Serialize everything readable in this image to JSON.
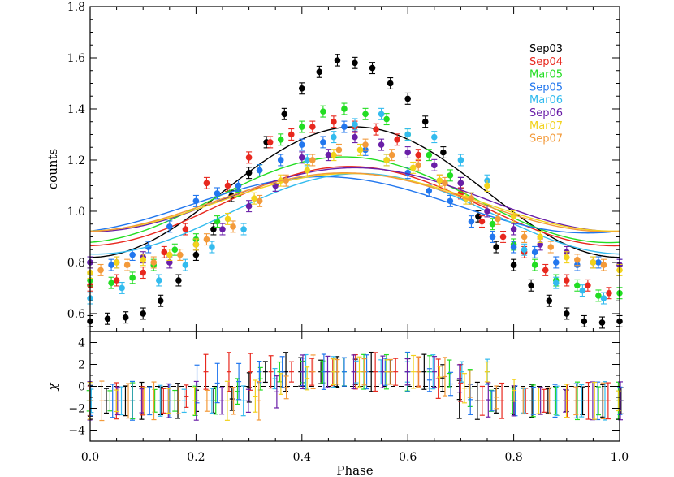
{
  "chart_data": [
    {
      "type": "scatter",
      "panel": "top",
      "ylabel": "counts",
      "xlabel": "",
      "xlim": [
        0.0,
        1.0
      ],
      "ylim": [
        0.53,
        1.8
      ],
      "yticks": [
        0.6,
        0.8,
        1.0,
        1.2,
        1.4,
        1.6,
        1.8
      ],
      "ytick_labels": [
        "0.6",
        "0.8",
        "1.0",
        "1.2",
        "1.4",
        "1.6",
        "1.8"
      ],
      "legend_position": "top-right",
      "series": [
        {
          "name": "Sep03",
          "color": "#000000",
          "model": {
            "mean": 1.075,
            "amp": 0.51,
            "peak": 0.5
          },
          "x": [
            0.0,
            0.033,
            0.067,
            0.1,
            0.133,
            0.167,
            0.2,
            0.233,
            0.267,
            0.3,
            0.333,
            0.367,
            0.4,
            0.433,
            0.467,
            0.5,
            0.533,
            0.567,
            0.6,
            0.633,
            0.667,
            0.7,
            0.733,
            0.767,
            0.8,
            0.833,
            0.867,
            0.9,
            0.933,
            0.967,
            1.0
          ],
          "y": [
            0.57,
            0.58,
            0.585,
            0.6,
            0.65,
            0.73,
            0.83,
            0.93,
            1.06,
            1.15,
            1.27,
            1.38,
            1.48,
            1.545,
            1.59,
            1.58,
            1.56,
            1.5,
            1.44,
            1.35,
            1.23,
            1.11,
            0.98,
            0.86,
            0.79,
            0.71,
            0.65,
            0.6,
            0.57,
            0.565,
            0.57
          ]
        },
        {
          "name": "Sep04",
          "color": "#e8281e",
          "model": {
            "mean": 1.02,
            "amp": 0.31,
            "peak": 0.49
          },
          "x": [
            0.0,
            0.05,
            0.1,
            0.14,
            0.18,
            0.22,
            0.26,
            0.3,
            0.34,
            0.38,
            0.42,
            0.46,
            0.5,
            0.54,
            0.58,
            0.62,
            0.66,
            0.7,
            0.74,
            0.78,
            0.82,
            0.86,
            0.9,
            0.94,
            0.98
          ],
          "y": [
            0.71,
            0.73,
            0.76,
            0.84,
            0.93,
            1.11,
            1.1,
            1.21,
            1.27,
            1.3,
            1.33,
            1.35,
            1.33,
            1.32,
            1.28,
            1.22,
            1.12,
            1.07,
            0.96,
            0.9,
            0.84,
            0.77,
            0.73,
            0.71,
            0.68
          ]
        },
        {
          "name": "Mar05",
          "color": "#22dd22",
          "model": {
            "mean": 1.045,
            "amp": 0.335,
            "peak": 0.48
          },
          "x": [
            0.0,
            0.04,
            0.08,
            0.12,
            0.16,
            0.2,
            0.24,
            0.28,
            0.32,
            0.36,
            0.4,
            0.44,
            0.48,
            0.52,
            0.56,
            0.6,
            0.64,
            0.68,
            0.72,
            0.76,
            0.8,
            0.84,
            0.88,
            0.92,
            0.96,
            1.0
          ],
          "y": [
            0.73,
            0.72,
            0.74,
            0.79,
            0.85,
            0.89,
            0.96,
            1.08,
            1.16,
            1.28,
            1.33,
            1.39,
            1.4,
            1.38,
            1.36,
            1.3,
            1.22,
            1.14,
            1.05,
            0.95,
            0.87,
            0.79,
            0.73,
            0.71,
            0.67,
            0.68
          ]
        },
        {
          "name": "Sep05",
          "color": "#2277ee",
          "model": {
            "mean": 1.025,
            "amp": 0.22,
            "peak": 0.44
          },
          "x": [
            0.0,
            0.04,
            0.08,
            0.11,
            0.15,
            0.2,
            0.24,
            0.28,
            0.32,
            0.36,
            0.4,
            0.44,
            0.48,
            0.52,
            0.56,
            0.6,
            0.64,
            0.68,
            0.72,
            0.76,
            0.8,
            0.84,
            0.88,
            0.92,
            0.96,
            1.0
          ],
          "y": [
            0.8,
            0.79,
            0.83,
            0.86,
            0.94,
            1.04,
            1.07,
            1.1,
            1.16,
            1.2,
            1.26,
            1.27,
            1.33,
            1.24,
            1.2,
            1.15,
            1.08,
            1.04,
            0.96,
            0.9,
            0.86,
            0.84,
            0.8,
            0.79,
            0.8,
            0.79
          ]
        },
        {
          "name": "Mar06",
          "color": "#33bbee",
          "model": {
            "mean": 0.99,
            "amp": 0.315,
            "peak": 0.51
          },
          "x": [
            0.0,
            0.06,
            0.13,
            0.18,
            0.23,
            0.29,
            0.35,
            0.41,
            0.46,
            0.5,
            0.55,
            0.6,
            0.65,
            0.7,
            0.75,
            0.82,
            0.88,
            0.93,
            0.97
          ],
          "y": [
            0.66,
            0.7,
            0.73,
            0.79,
            0.86,
            0.93,
            1.1,
            1.2,
            1.29,
            1.34,
            1.38,
            1.3,
            1.29,
            1.2,
            1.12,
            0.85,
            0.72,
            0.69,
            0.66
          ]
        },
        {
          "name": "Sep06",
          "color": "#6a1fa8",
          "model": {
            "mean": 1.045,
            "amp": 0.25,
            "peak": 0.5
          },
          "x": [
            0.0,
            0.05,
            0.1,
            0.15,
            0.2,
            0.25,
            0.3,
            0.35,
            0.4,
            0.45,
            0.5,
            0.55,
            0.6,
            0.65,
            0.7,
            0.75,
            0.8,
            0.85,
            0.9,
            0.95,
            1.0
          ],
          "y": [
            0.8,
            0.8,
            0.82,
            0.8,
            0.87,
            0.93,
            1.02,
            1.1,
            1.21,
            1.22,
            1.29,
            1.26,
            1.23,
            1.18,
            1.11,
            1.0,
            0.93,
            0.87,
            0.84,
            0.8,
            0.79
          ]
        },
        {
          "name": "Mar07",
          "color": "#f2d21c",
          "model": {
            "mean": 1.035,
            "amp": 0.225,
            "peak": 0.49
          },
          "x": [
            0.0,
            0.05,
            0.1,
            0.15,
            0.2,
            0.26,
            0.31,
            0.36,
            0.41,
            0.46,
            0.51,
            0.56,
            0.61,
            0.66,
            0.71,
            0.75,
            0.8,
            0.85,
            0.9,
            0.95,
            1.0
          ],
          "y": [
            0.76,
            0.8,
            0.81,
            0.83,
            0.87,
            0.97,
            1.05,
            1.12,
            1.16,
            1.22,
            1.24,
            1.2,
            1.17,
            1.12,
            1.05,
            1.1,
            0.98,
            0.9,
            0.82,
            0.8,
            0.77
          ]
        },
        {
          "name": "Sep07",
          "color": "#f39a3a",
          "model": {
            "mean": 1.035,
            "amp": 0.23,
            "peak": 0.48
          },
          "x": [
            0.02,
            0.07,
            0.12,
            0.17,
            0.22,
            0.27,
            0.32,
            0.37,
            0.42,
            0.47,
            0.52,
            0.57,
            0.62,
            0.67,
            0.72,
            0.77,
            0.82,
            0.87,
            0.92,
            0.97
          ],
          "y": [
            0.77,
            0.79,
            0.8,
            0.83,
            0.89,
            0.94,
            1.04,
            1.12,
            1.2,
            1.24,
            1.26,
            1.22,
            1.18,
            1.11,
            1.05,
            0.97,
            0.9,
            0.86,
            0.81,
            0.79
          ]
        }
      ]
    },
    {
      "type": "scatter",
      "panel": "bottom",
      "ylabel": "χ",
      "xlabel": "Phase",
      "xlim": [
        0.0,
        1.0
      ],
      "ylim": [
        -5.0,
        5.0
      ],
      "xticks": [
        0.0,
        0.2,
        0.4,
        0.6,
        0.8,
        1.0
      ],
      "xtick_labels": [
        "0.0",
        "0.2",
        "0.4",
        "0.6",
        "0.8",
        "1.0"
      ],
      "yticks": [
        -4,
        -2,
        0,
        2,
        4
      ],
      "ytick_labels": [
        "−4",
        "−2",
        "0",
        "2",
        "4"
      ],
      "reference_line": 0,
      "note": "residual error bars per season, approximately within ±4"
    }
  ]
}
